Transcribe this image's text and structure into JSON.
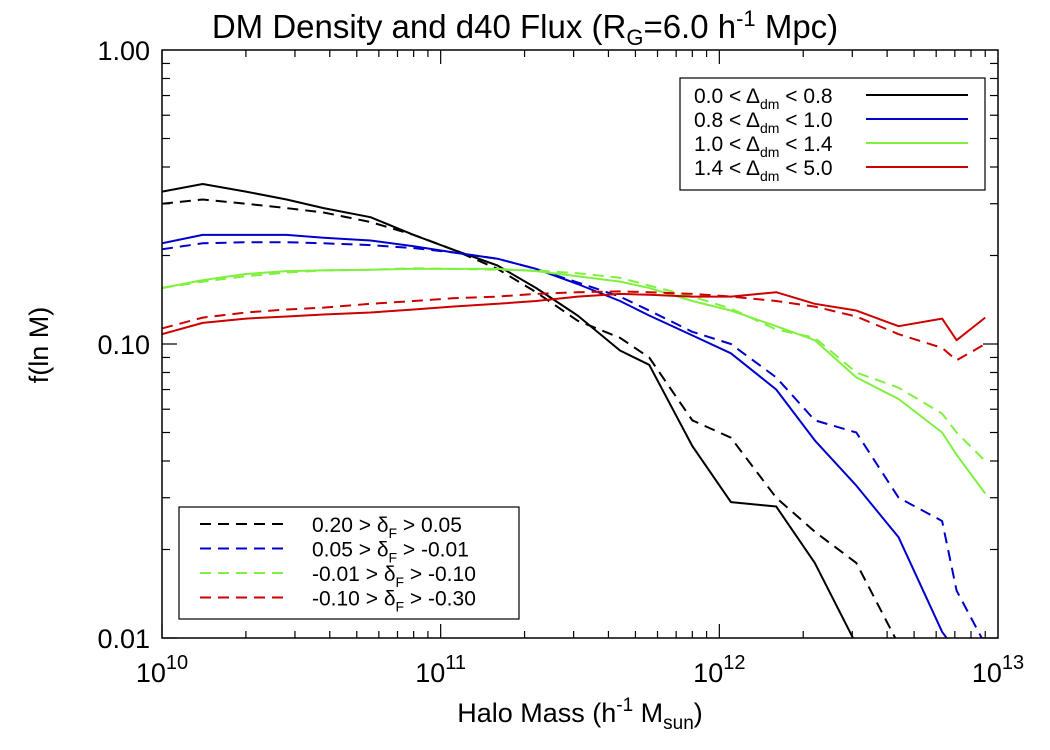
{
  "chart_data": {
    "type": "line",
    "title": {
      "main": "DM Density and d40 Flux (R",
      "sub": "G",
      "rest": "=6.0 h",
      "sup": "-1",
      "end": " Mpc)"
    },
    "xlabel": {
      "a": "Halo Mass (h",
      "sup": "-1",
      "b": " M",
      "sub": "sun",
      "c": ")"
    },
    "ylabel": "f(ln M)",
    "xscale": "log",
    "yscale": "log",
    "xlim": [
      10000000000.0,
      10000000000000.0
    ],
    "ylim": [
      0.01,
      1.0
    ],
    "x_ticks": [
      {
        "value": 10000000000.0,
        "base": "10",
        "exp": "10"
      },
      {
        "value": 100000000000.0,
        "base": "10",
        "exp": "11"
      },
      {
        "value": 1000000000000.0,
        "base": "10",
        "exp": "12"
      },
      {
        "value": 10000000000000.0,
        "base": "10",
        "exp": "13"
      }
    ],
    "y_ticks": [
      {
        "value": 0.01,
        "label": "0.01"
      },
      {
        "value": 0.1,
        "label": "0.10"
      },
      {
        "value": 1.0,
        "label": "1.00"
      }
    ],
    "x": [
      10000000000.0,
      14000000000.0,
      20000000000.0,
      28000000000.0,
      38000000000.0,
      56000000000.0,
      80000000000.0,
      110000000000.0,
      160000000000.0,
      220000000000.0,
      310000000000.0,
      440000000000.0,
      560000000000.0,
      800000000000.0,
      1100000000000.0,
      1600000000000.0,
      2200000000000.0,
      3100000000000.0,
      4400000000000.0,
      6300000000000.0,
      7100000000000.0,
      9000000000000.0
    ],
    "series": [
      {
        "name": "0.0 < Δdm < 0.8",
        "style": "solid",
        "color": "#000000",
        "values": [
          0.33,
          0.35,
          0.33,
          0.31,
          0.29,
          0.27,
          0.235,
          0.21,
          0.185,
          0.155,
          0.125,
          0.095,
          0.085,
          0.045,
          0.029,
          0.028,
          0.018,
          0.0095,
          null,
          null,
          null,
          null
        ]
      },
      {
        "name": "0.20 > δF > 0.05",
        "style": "dashed",
        "color": "#000000",
        "values": [
          0.3,
          0.31,
          0.3,
          0.29,
          0.28,
          0.26,
          0.235,
          0.21,
          0.18,
          0.15,
          0.12,
          0.105,
          0.09,
          0.055,
          0.048,
          0.03,
          0.023,
          0.018,
          0.0095,
          null,
          null,
          null
        ]
      },
      {
        "name": "0.8 < Δdm < 1.0",
        "style": "solid",
        "color": "#0000cc",
        "values": [
          0.22,
          0.235,
          0.235,
          0.235,
          0.23,
          0.225,
          0.215,
          0.205,
          0.195,
          0.18,
          0.16,
          0.14,
          0.125,
          0.107,
          0.093,
          0.07,
          0.047,
          0.033,
          0.022,
          0.0105,
          0.009,
          null
        ]
      },
      {
        "name": "0.05 > δF > -0.01",
        "style": "dashed",
        "color": "#0000cc",
        "values": [
          0.21,
          0.22,
          0.222,
          0.222,
          0.22,
          0.217,
          0.212,
          0.205,
          0.195,
          0.18,
          0.162,
          0.145,
          0.13,
          0.11,
          0.1,
          0.077,
          0.055,
          0.05,
          0.03,
          0.025,
          0.0145,
          0.0095
        ]
      },
      {
        "name": "1.0 < Δdm < 1.4",
        "style": "solid",
        "color": "#80f040",
        "values": [
          0.155,
          0.165,
          0.173,
          0.177,
          0.178,
          0.179,
          0.18,
          0.18,
          0.18,
          0.177,
          0.17,
          0.163,
          0.155,
          0.14,
          0.13,
          0.115,
          0.103,
          0.077,
          0.065,
          0.05,
          0.042,
          0.031
        ]
      },
      {
        "name": "-0.01 > δF > -0.10",
        "style": "dashed",
        "color": "#80f040",
        "values": [
          0.155,
          0.163,
          0.17,
          0.175,
          0.178,
          0.179,
          0.181,
          0.18,
          0.179,
          0.178,
          0.174,
          0.168,
          0.158,
          0.145,
          0.132,
          0.112,
          0.105,
          0.08,
          0.071,
          0.058,
          0.05,
          0.04
        ]
      },
      {
        "name": "1.4 < Δdm < 5.0",
        "style": "solid",
        "color": "#cc0000",
        "values": [
          0.108,
          0.118,
          0.122,
          0.124,
          0.126,
          0.128,
          0.131,
          0.134,
          0.137,
          0.14,
          0.145,
          0.148,
          0.147,
          0.145,
          0.145,
          0.15,
          0.137,
          0.13,
          0.115,
          0.122,
          0.103,
          0.123
        ]
      },
      {
        "name": "-0.10 > δF > -0.30",
        "style": "dashed",
        "color": "#cc0000",
        "values": [
          0.113,
          0.123,
          0.128,
          0.131,
          0.133,
          0.137,
          0.14,
          0.143,
          0.145,
          0.148,
          0.15,
          0.151,
          0.15,
          0.148,
          0.145,
          0.14,
          0.134,
          0.124,
          0.108,
          0.097,
          0.088,
          0.1
        ]
      }
    ],
    "legend_top": {
      "position": "top-right",
      "entries": [
        {
          "left": "0.0 <",
          "delta": "Δ",
          "sub": "dm",
          "right": "< 0.8",
          "color": "#000000",
          "style": "solid"
        },
        {
          "left": "0.8 <",
          "delta": "Δ",
          "sub": "dm",
          "right": "< 1.0",
          "color": "#0000cc",
          "style": "solid"
        },
        {
          "left": "1.0 <",
          "delta": "Δ",
          "sub": "dm",
          "right": "< 1.4",
          "color": "#80f040",
          "style": "solid"
        },
        {
          "left": "1.4 <",
          "delta": "Δ",
          "sub": "dm",
          "right": "< 5.0",
          "color": "#cc0000",
          "style": "solid"
        }
      ]
    },
    "legend_bottom": {
      "position": "bottom-left",
      "entries": [
        {
          "left": "0.20 >",
          "delta": "δ",
          "sub": "F",
          "right": ">  0.05",
          "color": "#000000",
          "style": "dashed"
        },
        {
          "left": "0.05 >",
          "delta": "δ",
          "sub": "F",
          "right": "> -0.01",
          "color": "#0000cc",
          "style": "dashed"
        },
        {
          "left": "-0.01 >",
          "delta": "δ",
          "sub": "F",
          "right": "> -0.10",
          "color": "#80f040",
          "style": "dashed"
        },
        {
          "left": "-0.10 >",
          "delta": "δ",
          "sub": "F",
          "right": "> -0.30",
          "color": "#cc0000",
          "style": "dashed"
        }
      ]
    }
  }
}
